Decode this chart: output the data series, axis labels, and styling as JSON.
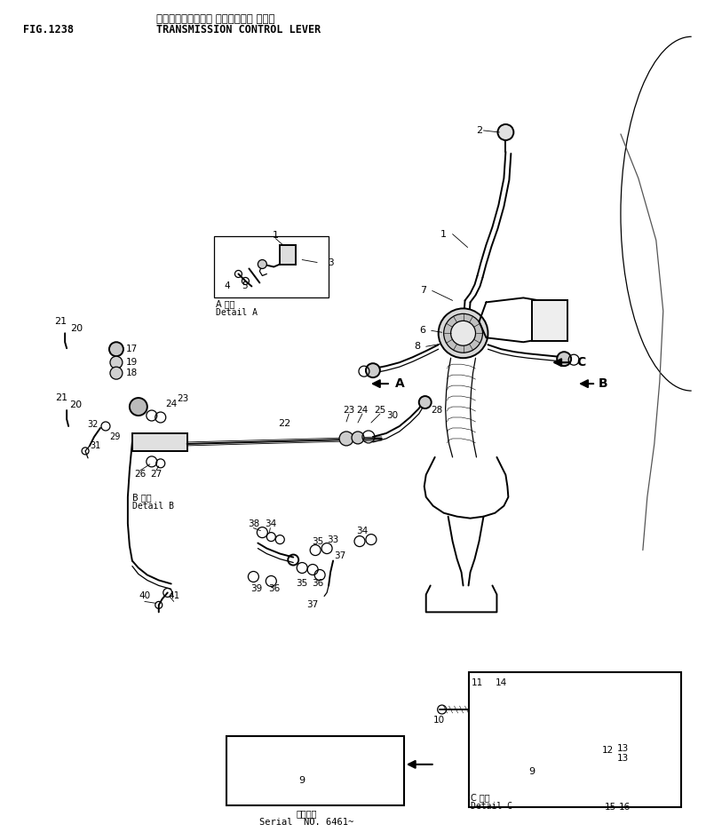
{
  "title_jp": "トランスミッション コントロール レバー",
  "title_en": "TRANSMISSION CONTROL LEVER",
  "fig_label": "FIG.1238",
  "serial_text_jp": "通番号機",
  "serial_text_en": "Serial  NO. 6461~",
  "detail_a_jp": "A 詳細",
  "detail_a_en": "Detail A",
  "detail_b_jp": "B 詳細",
  "detail_b_en": "Detail B",
  "detail_c_jp": "C 詳細",
  "detail_c_en": "Detail C",
  "bg_color": "#ffffff",
  "fig_width": 7.95,
  "fig_height": 9.46,
  "dpi": 100
}
